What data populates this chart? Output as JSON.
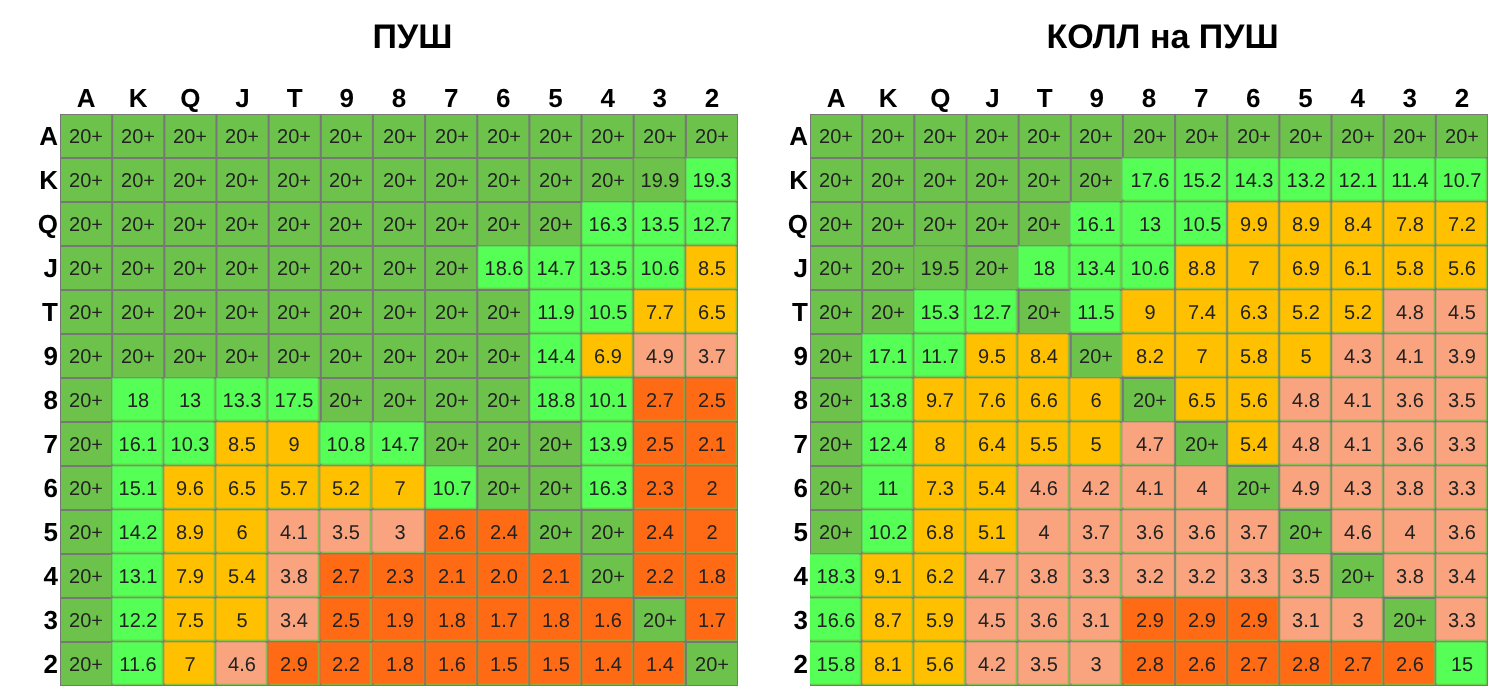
{
  "chart_data": [
    {
      "type": "heatmap",
      "title": "ПУШ",
      "categories": [
        "A",
        "K",
        "Q",
        "J",
        "T",
        "9",
        "8",
        "7",
        "6",
        "5",
        "4",
        "3",
        "2"
      ],
      "y_categories": [
        "A",
        "K",
        "Q",
        "J",
        "T",
        "9",
        "8",
        "7",
        "6",
        "5",
        "4",
        "3",
        "2"
      ],
      "cells": [
        [
          null,
          null,
          null,
          null,
          null,
          null,
          null,
          null,
          null,
          null,
          null,
          null,
          null
        ],
        [
          null,
          null,
          null,
          null,
          null,
          null,
          null,
          null,
          null,
          null,
          null,
          19.9,
          19.3
        ],
        [
          null,
          null,
          null,
          null,
          null,
          null,
          null,
          null,
          null,
          null,
          16.3,
          13.5,
          12.7
        ],
        [
          null,
          null,
          null,
          null,
          null,
          null,
          null,
          null,
          18.6,
          14.7,
          13.5,
          10.6,
          8.5
        ],
        [
          null,
          null,
          null,
          null,
          null,
          null,
          null,
          null,
          null,
          11.9,
          10.5,
          7.7,
          6.5
        ],
        [
          null,
          null,
          null,
          null,
          null,
          null,
          null,
          null,
          null,
          14.4,
          6.9,
          4.9,
          3.7
        ],
        [
          null,
          18,
          13,
          13.3,
          17.5,
          null,
          null,
          null,
          null,
          18.8,
          10.1,
          2.7,
          2.5
        ],
        [
          null,
          16.1,
          10.3,
          8.5,
          9,
          10.8,
          14.7,
          null,
          null,
          null,
          13.9,
          2.5,
          2.1
        ],
        [
          null,
          15.1,
          9.6,
          6.5,
          5.7,
          5.2,
          7,
          10.7,
          null,
          null,
          16.3,
          2.3,
          2
        ],
        [
          null,
          14.2,
          8.9,
          6,
          4.1,
          3.5,
          3,
          2.6,
          2.4,
          null,
          null,
          2.4,
          2
        ],
        [
          null,
          13.1,
          7.9,
          5.4,
          3.8,
          2.7,
          2.3,
          2.1,
          2,
          2.1,
          null,
          2.2,
          1.8
        ],
        [
          null,
          12.2,
          7.5,
          5,
          3.4,
          2.5,
          1.9,
          1.8,
          1.7,
          1.8,
          1.6,
          null,
          1.7
        ],
        [
          null,
          11.6,
          7,
          4.6,
          2.9,
          2.2,
          1.8,
          1.6,
          1.5,
          1.5,
          1.4,
          1.4,
          null
        ]
      ],
      "cell_labels": [
        [
          "20+",
          "20+",
          "20+",
          "20+",
          "20+",
          "20+",
          "20+",
          "20+",
          "20+",
          "20+",
          "20+",
          "20+",
          "20+"
        ],
        [
          "20+",
          "20+",
          "20+",
          "20+",
          "20+",
          "20+",
          "20+",
          "20+",
          "20+",
          "20+",
          "20+",
          "19.9",
          "19.3"
        ],
        [
          "20+",
          "20+",
          "20+",
          "20+",
          "20+",
          "20+",
          "20+",
          "20+",
          "20+",
          "20+",
          "16.3",
          "13.5",
          "12.7"
        ],
        [
          "20+",
          "20+",
          "20+",
          "20+",
          "20+",
          "20+",
          "20+",
          "20+",
          "18.6",
          "14.7",
          "13.5",
          "10.6",
          "8.5"
        ],
        [
          "20+",
          "20+",
          "20+",
          "20+",
          "20+",
          "20+",
          "20+",
          "20+",
          "20+",
          "11.9",
          "10.5",
          "7.7",
          "6.5"
        ],
        [
          "20+",
          "20+",
          "20+",
          "20+",
          "20+",
          "20+",
          "20+",
          "20+",
          "20+",
          "14.4",
          "6.9",
          "4.9",
          "3.7"
        ],
        [
          "20+",
          "18",
          "13",
          "13.3",
          "17.5",
          "20+",
          "20+",
          "20+",
          "20+",
          "18.8",
          "10.1",
          "2.7",
          "2.5"
        ],
        [
          "20+",
          "16.1",
          "10.3",
          "8.5",
          "9",
          "10.8",
          "14.7",
          "20+",
          "20+",
          "20+",
          "13.9",
          "2.5",
          "2.1"
        ],
        [
          "20+",
          "15.1",
          "9.6",
          "6.5",
          "5.7",
          "5.2",
          "7",
          "10.7",
          "20+",
          "20+",
          "16.3",
          "2.3",
          "2"
        ],
        [
          "20+",
          "14.2",
          "8.9",
          "6",
          "4.1",
          "3.5",
          "3",
          "2.6",
          "2.4",
          "20+",
          "20+",
          "2.4",
          "2"
        ],
        [
          "20+",
          "13.1",
          "7.9",
          "5.4",
          "3.8",
          "2.7",
          "2.3",
          "2.1",
          "2.0",
          "2.1",
          "20+",
          "2.2",
          "1.8"
        ],
        [
          "20+",
          "12.2",
          "7.5",
          "5",
          "3.4",
          "2.5",
          "1.9",
          "1.8",
          "1.7",
          "1.8",
          "1.6",
          "20+",
          "1.7"
        ],
        [
          "20+",
          "11.6",
          "7",
          "4.6",
          "2.9",
          "2.2",
          "1.8",
          "1.6",
          "1.5",
          "1.5",
          "1.4",
          "1.4",
          "20+"
        ]
      ]
    },
    {
      "type": "heatmap",
      "title": "КОЛЛ на ПУШ",
      "categories": [
        "A",
        "K",
        "Q",
        "J",
        "T",
        "9",
        "8",
        "7",
        "6",
        "5",
        "4",
        "3",
        "2"
      ],
      "y_categories": [
        "A",
        "K",
        "Q",
        "J",
        "T",
        "9",
        "8",
        "7",
        "6",
        "5",
        "4",
        "3",
        "2"
      ],
      "cells": [
        [
          null,
          null,
          null,
          null,
          null,
          null,
          null,
          null,
          null,
          null,
          null,
          null,
          null
        ],
        [
          null,
          null,
          null,
          null,
          null,
          null,
          17.6,
          15.2,
          14.3,
          13.2,
          12.1,
          11.4,
          10.7
        ],
        [
          null,
          null,
          null,
          null,
          null,
          16.1,
          13,
          10.5,
          9.9,
          8.9,
          8.4,
          7.8,
          7.2
        ],
        [
          null,
          null,
          19.5,
          null,
          18,
          13.4,
          10.6,
          8.8,
          7,
          6.9,
          6.1,
          5.8,
          5.6
        ],
        [
          null,
          null,
          15.3,
          12.7,
          null,
          11.5,
          9,
          7.4,
          6.3,
          5.2,
          5.2,
          4.8,
          4.5
        ],
        [
          null,
          17.1,
          11.7,
          9.5,
          8.4,
          null,
          8.2,
          7,
          5.8,
          5,
          4.3,
          4.1,
          3.9
        ],
        [
          null,
          13.8,
          9.7,
          7.6,
          6.6,
          6,
          null,
          6.5,
          5.6,
          4.8,
          4.1,
          3.6,
          3.5
        ],
        [
          null,
          12.4,
          8,
          6.4,
          5.5,
          5,
          4.7,
          null,
          5.4,
          4.8,
          4.1,
          3.6,
          3.3
        ],
        [
          null,
          11,
          7.3,
          5.4,
          4.6,
          4.2,
          4.1,
          4,
          null,
          4.9,
          4.3,
          3.8,
          3.3
        ],
        [
          null,
          10.2,
          6.8,
          5.1,
          4,
          3.7,
          3.6,
          3.6,
          3.7,
          null,
          4.6,
          4,
          3.6
        ],
        [
          18.3,
          9.1,
          6.2,
          4.7,
          3.8,
          3.3,
          3.2,
          3.2,
          3.3,
          3.5,
          null,
          3.8,
          3.4
        ],
        [
          16.6,
          8.7,
          5.9,
          4.5,
          3.6,
          3.1,
          2.9,
          2.9,
          2.9,
          3.1,
          3,
          null,
          3.3
        ],
        [
          15.8,
          8.1,
          5.6,
          4.2,
          3.5,
          3,
          2.8,
          2.6,
          2.7,
          2.8,
          2.7,
          2.6,
          15
        ]
      ],
      "cell_labels": [
        [
          "20+",
          "20+",
          "20+",
          "20+",
          "20+",
          "20+",
          "20+",
          "20+",
          "20+",
          "20+",
          "20+",
          "20+",
          "20+"
        ],
        [
          "20+",
          "20+",
          "20+",
          "20+",
          "20+",
          "20+",
          "17.6",
          "15.2",
          "14.3",
          "13.2",
          "12.1",
          "11.4",
          "10.7"
        ],
        [
          "20+",
          "20+",
          "20+",
          "20+",
          "20+",
          "16.1",
          "13",
          "10.5",
          "9.9",
          "8.9",
          "8.4",
          "7.8",
          "7.2"
        ],
        [
          "20+",
          "20+",
          "19.5",
          "20+",
          "18",
          "13.4",
          "10.6",
          "8.8",
          "7",
          "6.9",
          "6.1",
          "5.8",
          "5.6"
        ],
        [
          "20+",
          "20+",
          "15.3",
          "12.7",
          "20+",
          "11.5",
          "9",
          "7.4",
          "6.3",
          "5.2",
          "5.2",
          "4.8",
          "4.5"
        ],
        [
          "20+",
          "17.1",
          "11.7",
          "9.5",
          "8.4",
          "20+",
          "8.2",
          "7",
          "5.8",
          "5",
          "4.3",
          "4.1",
          "3.9"
        ],
        [
          "20+",
          "13.8",
          "9.7",
          "7.6",
          "6.6",
          "6",
          "20+",
          "6.5",
          "5.6",
          "4.8",
          "4.1",
          "3.6",
          "3.5"
        ],
        [
          "20+",
          "12.4",
          "8",
          "6.4",
          "5.5",
          "5",
          "4.7",
          "20+",
          "5.4",
          "4.8",
          "4.1",
          "3.6",
          "3.3"
        ],
        [
          "20+",
          "11",
          "7.3",
          "5.4",
          "4.6",
          "4.2",
          "4.1",
          "4",
          "20+",
          "4.9",
          "4.3",
          "3.8",
          "3.3"
        ],
        [
          "20+",
          "10.2",
          "6.8",
          "5.1",
          "4",
          "3.7",
          "3.6",
          "3.6",
          "3.7",
          "20+",
          "4.6",
          "4",
          "3.6"
        ],
        [
          "18.3",
          "9.1",
          "6.2",
          "4.7",
          "3.8",
          "3.3",
          "3.2",
          "3.2",
          "3.3",
          "3.5",
          "20+",
          "3.8",
          "3.4"
        ],
        [
          "16.6",
          "8.7",
          "5.9",
          "4.5",
          "3.6",
          "3.1",
          "2.9",
          "2.9",
          "2.9",
          "3.1",
          "3",
          "20+",
          "3.3"
        ],
        [
          "15.8",
          "8.1",
          "5.6",
          "4.2",
          "3.5",
          "3",
          "2.8",
          "2.6",
          "2.7",
          "2.8",
          "2.7",
          "2.6",
          "15"
        ]
      ]
    }
  ]
}
